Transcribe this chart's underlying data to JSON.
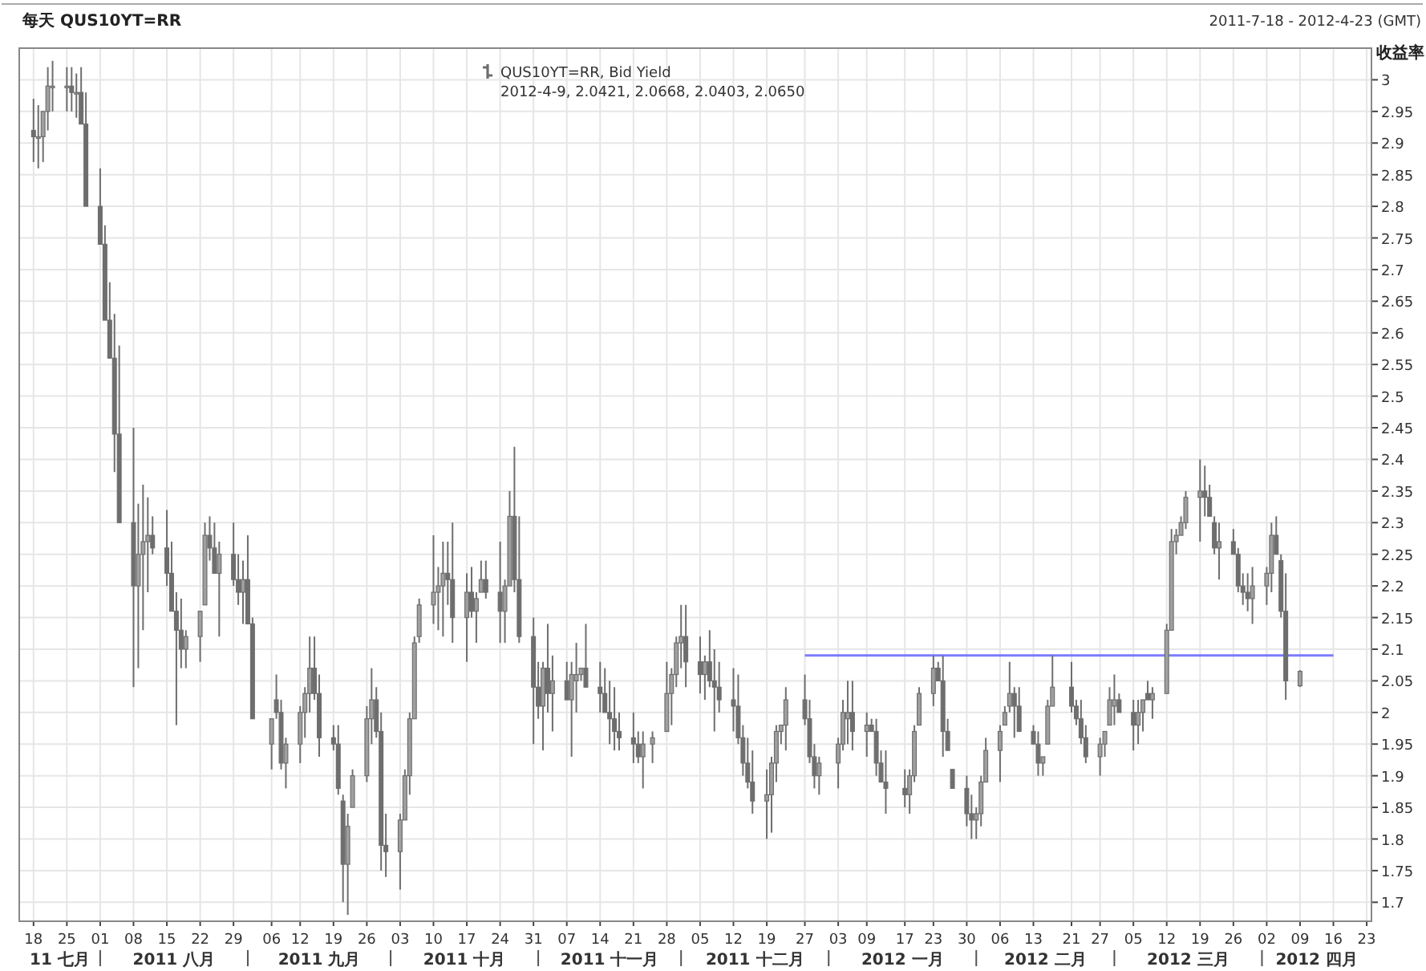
{
  "chart_data": {
    "type": "candlestick",
    "title": "每天 QUS10YT=RR",
    "subtitle": "2011-7-18 - 2012-4-23 (GMT)",
    "ylabel": "收益率",
    "xlim": [
      "2011-07-15",
      "2012-04-24"
    ],
    "ylim": [
      1.67,
      3.05
    ],
    "grid": true,
    "legend": "top",
    "yticks": [
      1.7,
      1.75,
      1.8,
      1.85,
      1.9,
      1.95,
      2,
      2.05,
      2.1,
      2.15,
      2.2,
      2.25,
      2.3,
      2.35,
      2.4,
      2.45,
      2.5,
      2.55,
      2.6,
      2.65,
      2.7,
      2.75,
      2.8,
      2.85,
      2.9,
      2.95,
      3
    ],
    "xticks": [
      {
        "value": "2011-07-18",
        "label": "18"
      },
      {
        "value": "2011-07-25",
        "label": "25"
      },
      {
        "value": "2011-08-01",
        "label": "01"
      },
      {
        "value": "2011-08-08",
        "label": "08"
      },
      {
        "value": "2011-08-15",
        "label": "15"
      },
      {
        "value": "2011-08-22",
        "label": "22"
      },
      {
        "value": "2011-08-29",
        "label": "29"
      },
      {
        "value": "2011-09-06",
        "label": "06"
      },
      {
        "value": "2011-09-12",
        "label": "12"
      },
      {
        "value": "2011-09-19",
        "label": "19"
      },
      {
        "value": "2011-09-26",
        "label": "26"
      },
      {
        "value": "2011-10-03",
        "label": "03"
      },
      {
        "value": "2011-10-10",
        "label": "10"
      },
      {
        "value": "2011-10-17",
        "label": "17"
      },
      {
        "value": "2011-10-24",
        "label": "24"
      },
      {
        "value": "2011-10-31",
        "label": "31"
      },
      {
        "value": "2011-11-07",
        "label": "07"
      },
      {
        "value": "2011-11-14",
        "label": "14"
      },
      {
        "value": "2011-11-21",
        "label": "21"
      },
      {
        "value": "2011-11-28",
        "label": "28"
      },
      {
        "value": "2011-12-05",
        "label": "05"
      },
      {
        "value": "2011-12-12",
        "label": "12"
      },
      {
        "value": "2011-12-19",
        "label": "19"
      },
      {
        "value": "2011-12-27",
        "label": "27"
      },
      {
        "value": "2012-01-03",
        "label": "03"
      },
      {
        "value": "2012-01-09",
        "label": "09"
      },
      {
        "value": "2012-01-17",
        "label": "17"
      },
      {
        "value": "2012-01-23",
        "label": "23"
      },
      {
        "value": "2012-01-30",
        "label": "30"
      },
      {
        "value": "2012-02-06",
        "label": "06"
      },
      {
        "value": "2012-02-13",
        "label": "13"
      },
      {
        "value": "2012-02-21",
        "label": "21"
      },
      {
        "value": "2012-02-27",
        "label": "27"
      },
      {
        "value": "2012-03-05",
        "label": "05"
      },
      {
        "value": "2012-03-12",
        "label": "12"
      },
      {
        "value": "2012-03-19",
        "label": "19"
      },
      {
        "value": "2012-03-26",
        "label": "26"
      },
      {
        "value": "2012-04-02",
        "label": "02"
      },
      {
        "value": "2012-04-09",
        "label": "09"
      },
      {
        "value": "2012-04-16",
        "label": "16"
      },
      {
        "value": "2012-04-23",
        "label": "23"
      }
    ],
    "annotations": [
      "2012-4-9, 2.0421, 2.0668, 2.0403, 2.0650",
      "11 七月",
      "2011 八月",
      "2011 九月",
      "2011 十月",
      "2011 十一月",
      "2011 十二月",
      "2012 一月",
      "2012 二月",
      "2012 三月",
      "2012 四月"
    ],
    "series": [
      {
        "name": "QUS10YT=RR, Bid Yield",
        "color": "#6e6e6e",
        "x": [
          "2011-07-18",
          "2011-07-19",
          "2011-07-20",
          "2011-07-21",
          "2011-07-22",
          "2011-07-25",
          "2011-07-26",
          "2011-07-27",
          "2011-07-28",
          "2011-07-29",
          "2011-08-01",
          "2011-08-02",
          "2011-08-03",
          "2011-08-04",
          "2011-08-05",
          "2011-08-08",
          "2011-08-09",
          "2011-08-10",
          "2011-08-11",
          "2011-08-12",
          "2011-08-15",
          "2011-08-16",
          "2011-08-17",
          "2011-08-18",
          "2011-08-19",
          "2011-08-22",
          "2011-08-23",
          "2011-08-24",
          "2011-08-25",
          "2011-08-26",
          "2011-08-29",
          "2011-08-30",
          "2011-08-31",
          "2011-09-01",
          "2011-09-02",
          "2011-09-06",
          "2011-09-07",
          "2011-09-08",
          "2011-09-09",
          "2011-09-12",
          "2011-09-13",
          "2011-09-14",
          "2011-09-15",
          "2011-09-16",
          "2011-09-19",
          "2011-09-20",
          "2011-09-21",
          "2011-09-22",
          "2011-09-23",
          "2011-09-26",
          "2011-09-27",
          "2011-09-28",
          "2011-09-29",
          "2011-09-30",
          "2011-10-03",
          "2011-10-04",
          "2011-10-05",
          "2011-10-06",
          "2011-10-07",
          "2011-10-10",
          "2011-10-11",
          "2011-10-12",
          "2011-10-13",
          "2011-10-14",
          "2011-10-17",
          "2011-10-18",
          "2011-10-19",
          "2011-10-20",
          "2011-10-21",
          "2011-10-24",
          "2011-10-25",
          "2011-10-26",
          "2011-10-27",
          "2011-10-28",
          "2011-10-31",
          "2011-11-01",
          "2011-11-02",
          "2011-11-03",
          "2011-11-04",
          "2011-11-07",
          "2011-11-08",
          "2011-11-09",
          "2011-11-10",
          "2011-11-11",
          "2011-11-14",
          "2011-11-15",
          "2011-11-16",
          "2011-11-17",
          "2011-11-18",
          "2011-11-21",
          "2011-11-22",
          "2011-11-23",
          "2011-11-25",
          "2011-11-28",
          "2011-11-29",
          "2011-11-30",
          "2011-12-01",
          "2011-12-02",
          "2011-12-05",
          "2011-12-06",
          "2011-12-07",
          "2011-12-08",
          "2011-12-09",
          "2011-12-12",
          "2011-12-13",
          "2011-12-14",
          "2011-12-15",
          "2011-12-16",
          "2011-12-19",
          "2011-12-20",
          "2011-12-21",
          "2011-12-22",
          "2011-12-23",
          "2011-12-27",
          "2011-12-28",
          "2011-12-29",
          "2011-12-30",
          "2012-01-03",
          "2012-01-04",
          "2012-01-05",
          "2012-01-06",
          "2012-01-09",
          "2012-01-10",
          "2012-01-11",
          "2012-01-12",
          "2012-01-13",
          "2012-01-17",
          "2012-01-18",
          "2012-01-19",
          "2012-01-20",
          "2012-01-23",
          "2012-01-24",
          "2012-01-25",
          "2012-01-26",
          "2012-01-27",
          "2012-01-30",
          "2012-01-31",
          "2012-02-01",
          "2012-02-02",
          "2012-02-03",
          "2012-02-06",
          "2012-02-07",
          "2012-02-08",
          "2012-02-09",
          "2012-02-10",
          "2012-02-13",
          "2012-02-14",
          "2012-02-15",
          "2012-02-16",
          "2012-02-17",
          "2012-02-21",
          "2012-02-22",
          "2012-02-23",
          "2012-02-24",
          "2012-02-27",
          "2012-02-28",
          "2012-02-29",
          "2012-03-01",
          "2012-03-02",
          "2012-03-05",
          "2012-03-06",
          "2012-03-07",
          "2012-03-08",
          "2012-03-09",
          "2012-03-12",
          "2012-03-13",
          "2012-03-14",
          "2012-03-15",
          "2012-03-16",
          "2012-03-19",
          "2012-03-20",
          "2012-03-21",
          "2012-03-22",
          "2012-03-23",
          "2012-03-26",
          "2012-03-27",
          "2012-03-28",
          "2012-03-29",
          "2012-03-30",
          "2012-04-02",
          "2012-04-03",
          "2012-04-04",
          "2012-04-05",
          "2012-04-06",
          "2012-04-09"
        ],
        "ohlc": [
          [
            2.92,
            2.97,
            2.87,
            2.91
          ],
          [
            2.91,
            2.96,
            2.86,
            2.91
          ],
          [
            2.91,
            2.95,
            2.87,
            2.95
          ],
          [
            2.95,
            3.02,
            2.92,
            2.99
          ],
          [
            2.99,
            3.03,
            2.95,
            2.99
          ],
          [
            2.99,
            3.02,
            2.95,
            2.99
          ],
          [
            2.99,
            3.02,
            2.95,
            2.98
          ],
          [
            2.98,
            3.01,
            2.94,
            2.98
          ],
          [
            2.98,
            3.02,
            2.93,
            2.93
          ],
          [
            2.93,
            2.98,
            2.8,
            2.8
          ],
          [
            2.8,
            2.86,
            2.74,
            2.74
          ],
          [
            2.74,
            2.77,
            2.62,
            2.62
          ],
          [
            2.62,
            2.68,
            2.56,
            2.56
          ],
          [
            2.56,
            2.63,
            2.38,
            2.44
          ],
          [
            2.44,
            2.58,
            2.3,
            2.3
          ],
          [
            2.3,
            2.45,
            2.04,
            2.2
          ],
          [
            2.2,
            2.33,
            2.07,
            2.25
          ],
          [
            2.25,
            2.36,
            2.13,
            2.27
          ],
          [
            2.27,
            2.34,
            2.19,
            2.28
          ],
          [
            2.28,
            2.31,
            2.25,
            2.26
          ],
          [
            2.26,
            2.32,
            2.2,
            2.22
          ],
          [
            2.22,
            2.27,
            2.16,
            2.16
          ],
          [
            2.16,
            2.19,
            1.98,
            2.13
          ],
          [
            2.13,
            2.18,
            2.07,
            2.1
          ],
          [
            2.1,
            2.13,
            2.07,
            2.12
          ],
          [
            2.12,
            2.16,
            2.08,
            2.16
          ],
          [
            2.17,
            2.3,
            2.17,
            2.28
          ],
          [
            2.28,
            2.31,
            2.24,
            2.26
          ],
          [
            2.26,
            2.3,
            2.22,
            2.22
          ],
          [
            2.22,
            2.27,
            2.12,
            2.25
          ],
          [
            2.25,
            2.3,
            2.2,
            2.21
          ],
          [
            2.21,
            2.25,
            2.17,
            2.19
          ],
          [
            2.19,
            2.24,
            2.14,
            2.21
          ],
          [
            2.21,
            2.28,
            2.14,
            2.14
          ],
          [
            2.14,
            2.15,
            1.99,
            1.99
          ],
          [
            1.95,
            1.99,
            1.91,
            1.99
          ],
          [
            2.02,
            2.06,
            1.99,
            2.0
          ],
          [
            2.0,
            2.02,
            1.91,
            1.92
          ],
          [
            1.92,
            1.96,
            1.88,
            1.95
          ],
          [
            1.95,
            2.01,
            1.92,
            2.0
          ],
          [
            2.0,
            2.04,
            1.96,
            2.03
          ],
          [
            2.03,
            2.12,
            2.0,
            2.07
          ],
          [
            2.07,
            2.12,
            2.02,
            2.03
          ],
          [
            2.03,
            2.06,
            1.93,
            1.96
          ],
          [
            1.96,
            1.98,
            1.94,
            1.95
          ],
          [
            1.95,
            1.98,
            1.87,
            1.88
          ],
          [
            1.86,
            1.87,
            1.7,
            1.76
          ],
          [
            1.76,
            1.84,
            1.68,
            1.82
          ],
          [
            1.85,
            1.91,
            1.85,
            1.9
          ],
          [
            1.9,
            2.01,
            1.89,
            1.99
          ],
          [
            1.99,
            2.07,
            1.95,
            2.02
          ],
          [
            2.02,
            2.04,
            1.96,
            1.97
          ],
          [
            1.97,
            2.0,
            1.75,
            1.79
          ],
          [
            1.79,
            1.84,
            1.74,
            1.78
          ],
          [
            1.78,
            1.84,
            1.72,
            1.83
          ],
          [
            1.83,
            1.91,
            1.83,
            1.9
          ],
          [
            1.9,
            2.0,
            1.87,
            1.99
          ],
          [
            1.99,
            2.12,
            1.99,
            2.11
          ],
          [
            2.12,
            2.18,
            2.11,
            2.17
          ],
          [
            2.17,
            2.28,
            2.14,
            2.19
          ],
          [
            2.19,
            2.23,
            2.13,
            2.2
          ],
          [
            2.2,
            2.27,
            2.12,
            2.22
          ],
          [
            2.22,
            2.27,
            2.17,
            2.21
          ],
          [
            2.21,
            2.3,
            2.11,
            2.15
          ],
          [
            2.15,
            2.22,
            2.08,
            2.19
          ],
          [
            2.19,
            2.23,
            2.15,
            2.16
          ],
          [
            2.16,
            2.19,
            2.11,
            2.18
          ],
          [
            2.19,
            2.24,
            2.19,
            2.21
          ],
          [
            2.21,
            2.24,
            2.18,
            2.19
          ],
          [
            2.19,
            2.27,
            2.11,
            2.16
          ],
          [
            2.16,
            2.21,
            2.11,
            2.2
          ],
          [
            2.2,
            2.35,
            2.2,
            2.31
          ],
          [
            2.31,
            2.42,
            2.19,
            2.21
          ],
          [
            2.21,
            2.31,
            2.11,
            2.12
          ],
          [
            2.12,
            2.15,
            1.95,
            2.04
          ],
          [
            2.04,
            2.08,
            1.99,
            2.01
          ],
          [
            2.01,
            2.08,
            1.94,
            2.07
          ],
          [
            2.07,
            2.14,
            2.0,
            2.03
          ],
          [
            2.03,
            2.09,
            1.97,
            2.05
          ],
          [
            2.05,
            2.08,
            2.02,
            2.02
          ],
          [
            2.02,
            2.08,
            1.93,
            2.06
          ],
          [
            2.05,
            2.11,
            2.0,
            2.06
          ],
          [
            2.06,
            2.07,
            2.05,
            2.07
          ],
          [
            2.07,
            2.14,
            2.04,
            2.04
          ],
          [
            2.04,
            2.08,
            2.0,
            2.03
          ],
          [
            2.03,
            2.07,
            2.0,
            2.0
          ],
          [
            2.0,
            2.05,
            1.95,
            1.99
          ],
          [
            1.99,
            2.04,
            1.94,
            1.97
          ],
          [
            1.97,
            2.0,
            1.94,
            1.96
          ],
          [
            1.96,
            2.0,
            1.92,
            1.95
          ],
          [
            1.95,
            1.97,
            1.92,
            1.93
          ],
          [
            1.93,
            1.97,
            1.88,
            1.95
          ],
          [
            1.95,
            1.97,
            1.92,
            1.96
          ],
          [
            1.97,
            2.08,
            1.97,
            2.03
          ],
          [
            2.03,
            2.07,
            1.98,
            2.06
          ],
          [
            2.06,
            2.12,
            2.04,
            2.11
          ],
          [
            2.11,
            2.17,
            2.07,
            2.12
          ],
          [
            2.12,
            2.17,
            2.04,
            2.08
          ],
          [
            2.08,
            2.12,
            2.03,
            2.06
          ],
          [
            2.06,
            2.09,
            2.02,
            2.08
          ],
          [
            2.08,
            2.13,
            2.04,
            2.05
          ],
          [
            2.05,
            2.1,
            1.97,
            2.04
          ],
          [
            2.04,
            2.08,
            2.0,
            2.02
          ],
          [
            2.02,
            2.07,
            1.97,
            2.01
          ],
          [
            2.01,
            2.06,
            1.95,
            1.96
          ],
          [
            1.96,
            1.98,
            1.9,
            1.92
          ],
          [
            1.92,
            1.96,
            1.88,
            1.89
          ],
          [
            1.89,
            1.94,
            1.84,
            1.86
          ],
          [
            1.86,
            1.91,
            1.8,
            1.87
          ],
          [
            1.87,
            1.93,
            1.81,
            1.92
          ],
          [
            1.92,
            1.98,
            1.89,
            1.97
          ],
          [
            1.97,
            1.98,
            1.95,
            1.98
          ],
          [
            1.98,
            2.04,
            1.94,
            2.02
          ],
          [
            2.02,
            2.06,
            1.98,
            1.99
          ],
          [
            1.99,
            2.02,
            1.92,
            1.93
          ],
          [
            1.93,
            1.95,
            1.88,
            1.9
          ],
          [
            1.9,
            1.93,
            1.87,
            1.92
          ],
          [
            1.92,
            1.96,
            1.88,
            1.95
          ],
          [
            1.95,
            2.02,
            1.94,
            2.0
          ],
          [
            1.99,
            2.05,
            1.95,
            2.0
          ],
          [
            2.0,
            2.05,
            1.94,
            1.97
          ],
          [
            1.97,
            2.0,
            1.93,
            1.98
          ],
          [
            1.98,
            1.99,
            1.97,
            1.97
          ],
          [
            1.97,
            1.99,
            1.9,
            1.92
          ],
          [
            1.92,
            1.94,
            1.89,
            1.89
          ],
          [
            1.89,
            1.94,
            1.84,
            1.88
          ],
          [
            1.88,
            1.91,
            1.85,
            1.87
          ],
          [
            1.87,
            1.91,
            1.84,
            1.9
          ],
          [
            1.9,
            1.98,
            1.89,
            1.97
          ],
          [
            1.98,
            2.04,
            1.98,
            2.03
          ],
          [
            2.03,
            2.09,
            2.01,
            2.07
          ],
          [
            2.07,
            2.08,
            2.05,
            2.05
          ],
          [
            2.05,
            2.09,
            1.93,
            1.97
          ],
          [
            1.97,
            1.99,
            1.94,
            1.94
          ],
          [
            1.91,
            1.91,
            1.88,
            1.88
          ],
          [
            1.88,
            1.9,
            1.82,
            1.84
          ],
          [
            1.84,
            1.87,
            1.8,
            1.83
          ],
          [
            1.83,
            1.85,
            1.8,
            1.84
          ],
          [
            1.84,
            1.9,
            1.82,
            1.89
          ],
          [
            1.89,
            1.96,
            1.89,
            1.94
          ],
          [
            1.94,
            1.98,
            1.89,
            1.97
          ],
          [
            1.98,
            2.01,
            1.98,
            2.0
          ],
          [
            2.01,
            2.08,
            2.0,
            2.03
          ],
          [
            2.03,
            2.04,
            1.96,
            2.01
          ],
          [
            2.01,
            2.04,
            1.97,
            1.97
          ],
          [
            1.97,
            1.98,
            1.95,
            1.95
          ],
          [
            1.95,
            1.97,
            1.9,
            1.92
          ],
          [
            1.92,
            1.93,
            1.9,
            1.93
          ],
          [
            1.95,
            2.02,
            1.95,
            2.01
          ],
          [
            2.01,
            2.09,
            2.01,
            2.04
          ],
          [
            2.04,
            2.08,
            2.0,
            2.01
          ],
          [
            2.01,
            2.02,
            1.98,
            1.99
          ],
          [
            1.99,
            2.02,
            1.95,
            1.96
          ],
          [
            1.96,
            1.98,
            1.92,
            1.93
          ],
          [
            1.93,
            1.96,
            1.9,
            1.95
          ],
          [
            1.95,
            1.97,
            1.93,
            1.97
          ],
          [
            1.98,
            2.04,
            1.98,
            2.02
          ],
          [
            2.01,
            2.06,
            1.98,
            2.02
          ],
          [
            2.02,
            2.03,
            2.0,
            2.0
          ],
          [
            2.0,
            2.02,
            1.94,
            1.98
          ],
          [
            1.98,
            2.02,
            1.95,
            2.0
          ],
          [
            2.0,
            2.02,
            1.97,
            2.02
          ],
          [
            2.03,
            2.05,
            2.02,
            2.02
          ],
          [
            2.02,
            2.04,
            1.99,
            2.03
          ],
          [
            2.03,
            2.14,
            2.03,
            2.13
          ],
          [
            2.13,
            2.29,
            2.13,
            2.27
          ],
          [
            2.27,
            2.29,
            2.25,
            2.28
          ],
          [
            2.28,
            2.31,
            2.28,
            2.3
          ],
          [
            2.3,
            2.35,
            2.29,
            2.34
          ],
          [
            2.34,
            2.4,
            2.27,
            2.35
          ],
          [
            2.35,
            2.39,
            2.31,
            2.34
          ],
          [
            2.34,
            2.36,
            2.31,
            2.31
          ],
          [
            2.3,
            2.31,
            2.25,
            2.26
          ],
          [
            2.26,
            2.3,
            2.21,
            2.27
          ],
          [
            2.27,
            2.29,
            2.25,
            2.25
          ],
          [
            2.25,
            2.26,
            2.19,
            2.2
          ],
          [
            2.2,
            2.22,
            2.17,
            2.19
          ],
          [
            2.19,
            2.22,
            2.16,
            2.18
          ],
          [
            2.18,
            2.23,
            2.14,
            2.2
          ],
          [
            2.2,
            2.23,
            2.17,
            2.22
          ],
          [
            2.22,
            2.3,
            2.19,
            2.28
          ],
          [
            2.28,
            2.31,
            2.25,
            2.25
          ],
          [
            2.24,
            2.25,
            2.15,
            2.16
          ],
          [
            2.16,
            2.22,
            2.02,
            2.05
          ],
          [
            2.0421,
            2.0668,
            2.0403,
            2.065
          ]
        ]
      },
      {
        "type": "line",
        "color": "#7b7bff",
        "x": [
          "2011-12-27",
          "2012-04-16"
        ],
        "values": [
          2.09,
          2.09
        ]
      }
    ]
  }
}
